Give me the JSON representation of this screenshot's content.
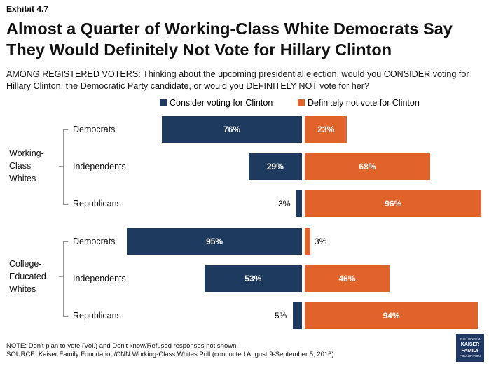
{
  "exhibit": "Exhibit 4.7",
  "title": "Almost a Quarter of Working-Class White Democrats Say They Would Definitely Not Vote for Hillary Clinton",
  "subtitle_prefix": "AMONG REGISTERED VOTERS",
  "subtitle_text": ": Thinking about the upcoming presidential election, would you CONSIDER voting for Hillary Clinton, the Democratic Party candidate, or would you DEFINITELY NOT vote for her?",
  "colors": {
    "consider": "#1f3a5f",
    "not": "#e0632a"
  },
  "chart_data": {
    "type": "bar",
    "legend_position": "top",
    "series": [
      {
        "name": "Consider voting for Clinton",
        "values": [
          76,
          29,
          3,
          95,
          53,
          5
        ]
      },
      {
        "name": "Definitely not vote for Clinton",
        "values": [
          23,
          68,
          96,
          3,
          46,
          94
        ]
      }
    ],
    "groups": [
      {
        "label_lines": [
          "Working-",
          "Class",
          "Whites"
        ],
        "categories": [
          "Democrats",
          "Independents",
          "Republicans"
        ]
      },
      {
        "label_lines": [
          "College-",
          "Educated",
          "Whites"
        ],
        "categories": [
          "Democrats",
          "Independents",
          "Republicans"
        ]
      }
    ],
    "value_suffix": "%",
    "xlim": [
      0,
      100
    ]
  },
  "note": "NOTE: Don't plan to vote (Vol.) and Don't know/Refused responses not shown.",
  "source": "SOURCE: Kaiser Family Foundation/CNN Working-Class Whites Poll (conducted August 9-September 5, 2016)",
  "logo": {
    "line1": "THE HENRY J.",
    "line2": "KAISER",
    "line3": "FAMILY",
    "line4": "FOUNDATION"
  }
}
